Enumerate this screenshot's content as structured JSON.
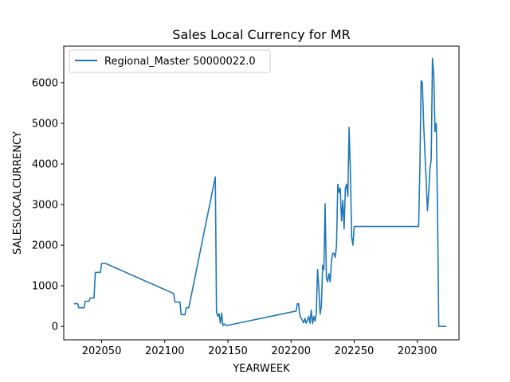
{
  "chart_data": {
    "type": "line",
    "title": "Sales Local Currency for MR",
    "xlabel": "YEARWEEK",
    "ylabel": "SALESLOCALCURRENCY",
    "xlim": [
      202020,
      202333
    ],
    "ylim": [
      -330,
      6900
    ],
    "x_ticks": [
      202050,
      202100,
      202150,
      202200,
      202250,
      202300
    ],
    "y_ticks": [
      0,
      1000,
      2000,
      3000,
      4000,
      5000,
      6000
    ],
    "grid": false,
    "legend_position": "upper left",
    "series": [
      {
        "name": "Regional_Master 50000022.0",
        "color": "#1f77b4",
        "x": [
          202028,
          202031,
          202032,
          202036,
          202037,
          202040,
          202041,
          202044,
          202045,
          202049,
          202050,
          202053,
          202107,
          202108,
          202112,
          202113,
          202116,
          202117,
          202119,
          202140,
          202141,
          202142,
          202143,
          202144,
          202145,
          202146,
          202147,
          202149,
          202204,
          202205,
          202206,
          202207,
          202208,
          202209,
          202210,
          202211,
          202212,
          202213,
          202214,
          202215,
          202216,
          202217,
          202218,
          202219,
          202220,
          202221,
          202222,
          202223,
          202224,
          202225,
          202226,
          202227,
          202228,
          202229,
          202230,
          202231,
          202232,
          202233,
          202234,
          202235,
          202236,
          202237,
          202238,
          202239,
          202240,
          202241,
          202242,
          202243,
          202244,
          202245,
          202246,
          202247,
          202248,
          202249,
          202250,
          202251,
          202252,
          202301,
          202302,
          202303,
          202304,
          202305,
          202306,
          202307,
          202308,
          202309,
          202310,
          202311,
          202312,
          202313,
          202314,
          202315,
          202316,
          202317,
          202318,
          202319,
          202320,
          202321,
          202322,
          202323
        ],
        "y": [
          560,
          560,
          460,
          460,
          620,
          620,
          700,
          700,
          1330,
          1330,
          1550,
          1550,
          810,
          600,
          600,
          290,
          290,
          460,
          460,
          3680,
          360,
          250,
          310,
          80,
          330,
          20,
          60,
          20,
          380,
          560,
          560,
          270,
          200,
          150,
          90,
          200,
          80,
          150,
          250,
          80,
          400,
          70,
          250,
          130,
          300,
          1400,
          950,
          300,
          500,
          1500,
          1400,
          3020,
          1200,
          1100,
          1300,
          1100,
          1600,
          1800,
          1800,
          1700,
          2000,
          3500,
          3300,
          3400,
          2600,
          3100,
          2400,
          3400,
          3500,
          3200,
          4900,
          3800,
          2200,
          2000,
          2460,
          2460,
          2460,
          2460,
          3900,
          6050,
          6000,
          5000,
          4300,
          3600,
          2850,
          3300,
          3900,
          4100,
          6600,
          6200,
          4800,
          5000,
          2800,
          0,
          0,
          0,
          0,
          0,
          0,
          0
        ]
      }
    ]
  }
}
